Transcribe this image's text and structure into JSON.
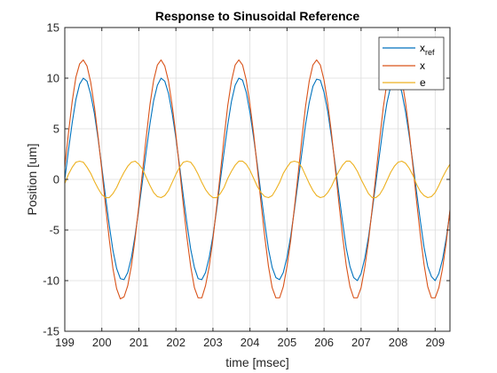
{
  "chart_data": {
    "type": "line",
    "title": "Response to Sinusoidal Reference",
    "xlabel": "time [msec]",
    "ylabel": "Position [um]",
    "xlim": [
      199,
      209.4
    ],
    "ylim": [
      -15,
      15
    ],
    "xticks": [
      199,
      200,
      201,
      202,
      203,
      204,
      205,
      206,
      207,
      208,
      209
    ],
    "yticks": [
      -15,
      -10,
      -5,
      0,
      5,
      10,
      15
    ],
    "grid": true,
    "legend_position": "top-right",
    "series": [
      {
        "name": "x_ref",
        "color": "#0072BD",
        "x": [
          199.0,
          199.1,
          199.2,
          199.3,
          199.4,
          199.5,
          199.6,
          199.7,
          199.8,
          199.9,
          200.0,
          200.1,
          200.2,
          200.3,
          200.4,
          200.5,
          200.6,
          200.7,
          200.8,
          200.9,
          201.0,
          201.1,
          201.2,
          201.3,
          201.4,
          201.5,
          201.6,
          201.7,
          201.8,
          201.9,
          202.0,
          202.1,
          202.2,
          202.3,
          202.4,
          202.5,
          202.6,
          202.7,
          202.8,
          202.9,
          203.0,
          203.1,
          203.2,
          203.3,
          203.4,
          203.5,
          203.6,
          203.7,
          203.8,
          203.9,
          204.0,
          204.1,
          204.2,
          204.3,
          204.4,
          204.5,
          204.6,
          204.7,
          204.8,
          204.9,
          205.0,
          205.1,
          205.2,
          205.3,
          205.4,
          205.5,
          205.6,
          205.7,
          205.8,
          205.9,
          206.0,
          206.1,
          206.2,
          206.3,
          206.4,
          206.5,
          206.6,
          206.7,
          206.8,
          206.9,
          207.0,
          207.1,
          207.2,
          207.3,
          207.4,
          207.5,
          207.6,
          207.7,
          207.8,
          207.9,
          208.0,
          208.1,
          208.2,
          208.3,
          208.4,
          208.5,
          208.6,
          208.7,
          208.8,
          208.9,
          209.0,
          209.1,
          209.2,
          209.3,
          209.4
        ],
        "y": [
          0.0,
          2.9,
          5.6,
          7.9,
          9.4,
          10.0,
          9.7,
          8.4,
          6.5,
          4.0,
          1.2,
          -1.7,
          -4.5,
          -7.0,
          -8.8,
          -9.8,
          -9.9,
          -9.2,
          -7.7,
          -5.5,
          -2.9,
          -0.1,
          2.8,
          5.5,
          7.8,
          9.3,
          10.0,
          9.7,
          8.5,
          6.5,
          4.1,
          1.3,
          -1.6,
          -4.4,
          -6.9,
          -8.7,
          -9.8,
          -9.9,
          -9.2,
          -7.7,
          -5.6,
          -3.0,
          -0.1,
          2.7,
          5.4,
          7.7,
          9.3,
          10.0,
          9.8,
          8.6,
          6.6,
          4.1,
          1.4,
          -1.5,
          -4.3,
          -6.9,
          -8.7,
          -9.7,
          -9.9,
          -9.2,
          -7.7,
          -5.6,
          -3.0,
          -0.2,
          2.6,
          5.4,
          7.6,
          9.2,
          9.9,
          9.8,
          8.6,
          6.7,
          4.2,
          1.5,
          -1.4,
          -4.2,
          -6.8,
          -8.6,
          -9.7,
          -10.0,
          -9.3,
          -7.8,
          -5.7,
          -3.1,
          -0.3,
          2.5,
          5.3,
          7.6,
          9.2,
          9.9,
          9.8,
          8.6,
          6.7,
          4.3,
          1.6,
          -1.3,
          -4.1,
          -6.7,
          -8.6,
          -9.6,
          -10.0,
          -9.3,
          -7.9,
          -5.8,
          -3.2
        ]
      },
      {
        "name": "x",
        "color": "#D95319",
        "x": [
          199.0,
          199.1,
          199.2,
          199.3,
          199.4,
          199.5,
          199.6,
          199.7,
          199.8,
          199.9,
          200.0,
          200.1,
          200.2,
          200.3,
          200.4,
          200.5,
          200.6,
          200.7,
          200.8,
          200.9,
          201.0,
          201.1,
          201.2,
          201.3,
          201.4,
          201.5,
          201.6,
          201.7,
          201.8,
          201.9,
          202.0,
          202.1,
          202.2,
          202.3,
          202.4,
          202.5,
          202.6,
          202.7,
          202.8,
          202.9,
          203.0,
          203.1,
          203.2,
          203.3,
          203.4,
          203.5,
          203.6,
          203.7,
          203.8,
          203.9,
          204.0,
          204.1,
          204.2,
          204.3,
          204.4,
          204.5,
          204.6,
          204.7,
          204.8,
          204.9,
          205.0,
          205.1,
          205.2,
          205.3,
          205.4,
          205.5,
          205.6,
          205.7,
          205.8,
          205.9,
          206.0,
          206.1,
          206.2,
          206.3,
          206.4,
          206.5,
          206.6,
          206.7,
          206.8,
          206.9,
          207.0,
          207.1,
          207.2,
          207.3,
          207.4,
          207.5,
          207.6,
          207.7,
          207.8,
          207.9,
          208.0,
          208.1,
          208.2,
          208.3,
          208.4,
          208.5,
          208.6,
          208.7,
          208.8,
          208.9,
          209.0,
          209.1,
          209.2,
          209.3,
          209.4
        ],
        "y": [
          1.2,
          4.6,
          7.7,
          10.1,
          11.4,
          11.8,
          11.2,
          9.6,
          7.2,
          4.2,
          0.9,
          -2.6,
          -5.9,
          -8.8,
          -10.8,
          -11.8,
          -11.6,
          -10.5,
          -8.5,
          -5.8,
          -2.6,
          0.8,
          4.2,
          7.4,
          9.8,
          11.3,
          11.8,
          11.2,
          9.7,
          7.3,
          4.4,
          1.0,
          -2.5,
          -5.8,
          -8.6,
          -10.7,
          -11.7,
          -11.7,
          -10.5,
          -8.6,
          -5.9,
          -2.7,
          0.6,
          4.1,
          7.3,
          9.7,
          11.3,
          11.8,
          11.3,
          9.8,
          7.4,
          4.5,
          1.1,
          -2.4,
          -5.7,
          -8.6,
          -10.7,
          -11.7,
          -11.7,
          -10.6,
          -8.6,
          -6.0,
          -2.8,
          0.5,
          4.0,
          7.2,
          9.7,
          11.3,
          11.8,
          11.3,
          9.8,
          7.5,
          4.6,
          1.2,
          -2.3,
          -5.6,
          -8.5,
          -10.6,
          -11.7,
          -11.7,
          -10.7,
          -8.7,
          -6.1,
          -2.9,
          0.4,
          3.9,
          7.1,
          9.6,
          11.2,
          11.8,
          11.3,
          9.9,
          7.6,
          4.7,
          1.3,
          -2.2,
          -5.5,
          -8.4,
          -10.6,
          -11.7,
          -11.7,
          -10.7,
          -8.8,
          -6.2,
          -3.0
        ]
      },
      {
        "name": "e",
        "color": "#EDB120",
        "x": [
          199.0,
          199.1,
          199.2,
          199.3,
          199.4,
          199.5,
          199.6,
          199.7,
          199.8,
          199.9,
          200.0,
          200.1,
          200.2,
          200.3,
          200.4,
          200.5,
          200.6,
          200.7,
          200.8,
          200.9,
          201.0,
          201.1,
          201.2,
          201.3,
          201.4,
          201.5,
          201.6,
          201.7,
          201.8,
          201.9,
          202.0,
          202.1,
          202.2,
          202.3,
          202.4,
          202.5,
          202.6,
          202.7,
          202.8,
          202.9,
          203.0,
          203.1,
          203.2,
          203.3,
          203.4,
          203.5,
          203.6,
          203.7,
          203.8,
          203.9,
          204.0,
          204.1,
          204.2,
          204.3,
          204.4,
          204.5,
          204.6,
          204.7,
          204.8,
          204.9,
          205.0,
          205.1,
          205.2,
          205.3,
          205.4,
          205.5,
          205.6,
          205.7,
          205.8,
          205.9,
          206.0,
          206.1,
          206.2,
          206.3,
          206.4,
          206.5,
          206.6,
          206.7,
          206.8,
          206.9,
          207.0,
          207.1,
          207.2,
          207.3,
          207.4,
          207.5,
          207.6,
          207.7,
          207.8,
          207.9,
          208.0,
          208.1,
          208.2,
          208.3,
          208.4,
          208.5,
          208.6,
          208.7,
          208.8,
          208.9,
          209.0,
          209.1,
          209.2,
          209.3,
          209.4
        ],
        "y": [
          -0.4,
          0.5,
          1.2,
          1.7,
          1.8,
          1.7,
          1.2,
          0.6,
          -0.2,
          -0.9,
          -1.5,
          -1.8,
          -1.8,
          -1.4,
          -0.8,
          0.0,
          0.7,
          1.3,
          1.7,
          1.8,
          1.5,
          1.0,
          0.2,
          -0.6,
          -1.3,
          -1.7,
          -1.8,
          -1.6,
          -1.1,
          -0.3,
          0.5,
          1.2,
          1.7,
          1.8,
          1.7,
          1.2,
          0.5,
          -0.3,
          -1.0,
          -1.5,
          -1.8,
          -1.8,
          -1.4,
          -0.8,
          0.1,
          0.8,
          1.4,
          1.8,
          1.8,
          1.5,
          0.9,
          0.1,
          -0.7,
          -1.3,
          -1.7,
          -1.8,
          -1.6,
          -1.0,
          -0.3,
          0.6,
          1.2,
          1.7,
          1.8,
          1.7,
          1.2,
          0.4,
          -0.4,
          -1.1,
          -1.6,
          -1.8,
          -1.7,
          -1.3,
          -0.7,
          0.1,
          0.8,
          1.4,
          1.8,
          1.8,
          1.4,
          0.8,
          0.0,
          -0.7,
          -1.4,
          -1.8,
          -1.8,
          -1.5,
          -0.9,
          -0.1,
          0.7,
          1.3,
          1.7,
          1.8,
          1.6,
          1.1,
          0.4,
          -0.5,
          -1.2,
          -1.6,
          -1.8,
          -1.7,
          -1.3,
          -0.6,
          0.2,
          0.9,
          1.5
        ]
      }
    ]
  }
}
